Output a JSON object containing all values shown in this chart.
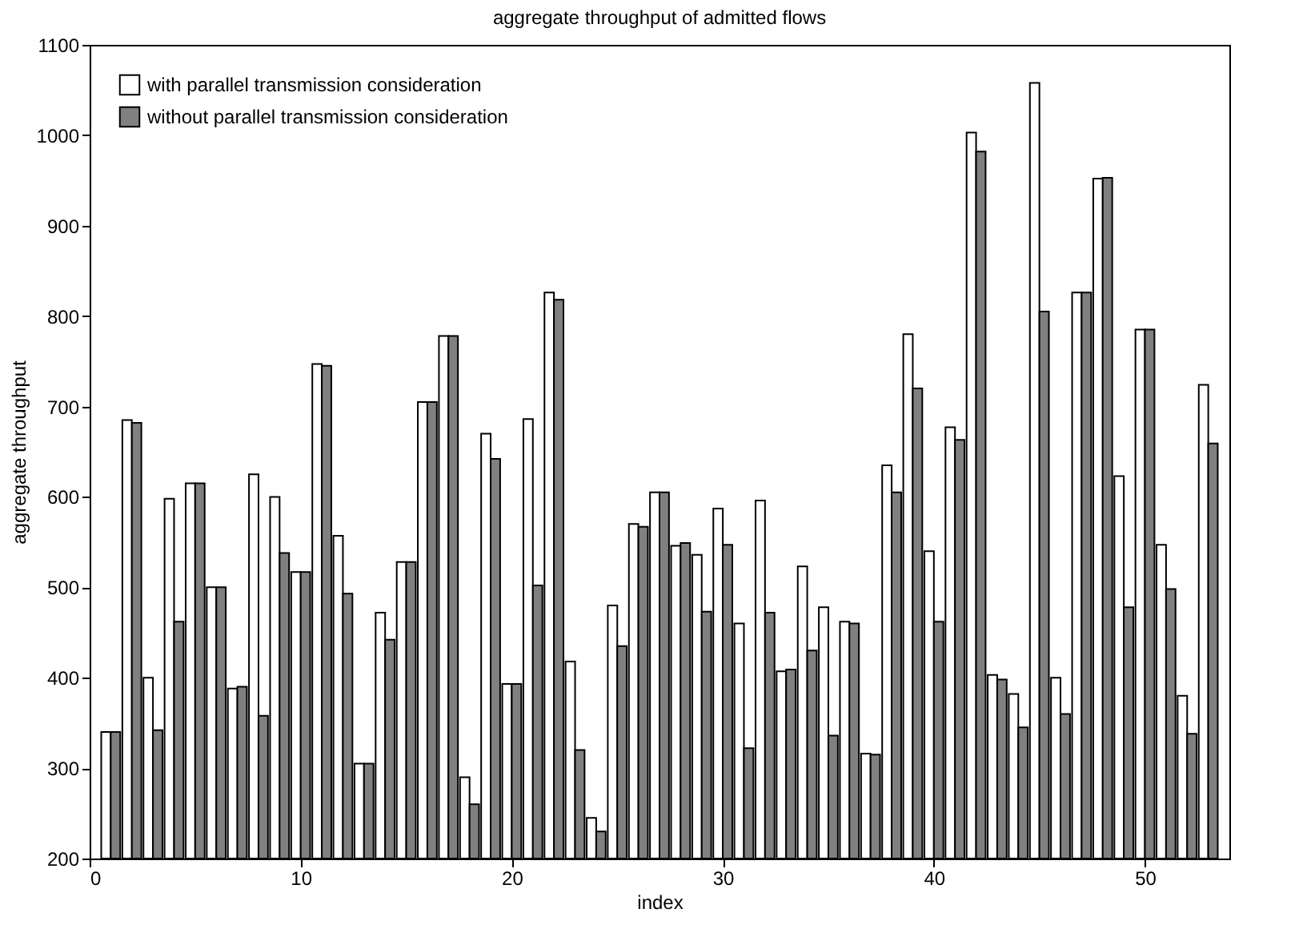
{
  "chart_data": {
    "type": "bar",
    "title": "aggregate throughput of admitted flows",
    "xlabel": "index",
    "ylabel": "aggregate throughput",
    "x": [
      1,
      2,
      3,
      4,
      5,
      6,
      7,
      8,
      9,
      10,
      11,
      12,
      13,
      14,
      15,
      16,
      17,
      18,
      19,
      20,
      21,
      22,
      23,
      24,
      25,
      26,
      27,
      28,
      29,
      30,
      31,
      32,
      33,
      34,
      35,
      36,
      37,
      38,
      39,
      40,
      41,
      42,
      43,
      44,
      45,
      46,
      47,
      48,
      49,
      50,
      51,
      52,
      53
    ],
    "series": [
      {
        "name": "with parallel transmission consideration",
        "color": "#ffffff",
        "values": [
          340,
          685,
          400,
          598,
          615,
          500,
          388,
          625,
          600,
          517,
          747,
          557,
          305,
          472,
          528,
          705,
          778,
          290,
          670,
          393,
          686,
          826,
          418,
          245,
          480,
          570,
          605,
          546,
          536,
          587,
          460,
          596,
          407,
          523,
          478,
          462,
          316,
          635,
          780,
          540,
          677,
          1003,
          403,
          382,
          1058,
          400,
          826,
          952,
          623,
          785,
          547,
          380,
          724
        ]
      },
      {
        "name": "without parallel transmission consideration",
        "color": "#808080",
        "values": [
          340,
          682,
          342,
          462,
          615,
          500,
          390,
          358,
          538,
          517,
          745,
          493,
          305,
          442,
          528,
          705,
          778,
          260,
          642,
          393,
          502,
          818,
          320,
          230,
          435,
          567,
          605,
          549,
          473,
          547,
          322,
          472,
          409,
          430,
          336,
          460,
          315,
          605,
          720,
          462,
          663,
          982,
          398,
          345,
          805,
          360,
          826,
          953,
          478,
          785,
          498,
          338,
          659
        ]
      }
    ],
    "xlim": [
      0,
      54
    ],
    "xticks": [
      0,
      10,
      20,
      30,
      40,
      50
    ],
    "ylim": [
      200,
      1100
    ],
    "yticks": [
      200,
      300,
      400,
      500,
      600,
      700,
      800,
      900,
      1000,
      1100
    ],
    "grid": false,
    "legend": "top left"
  }
}
